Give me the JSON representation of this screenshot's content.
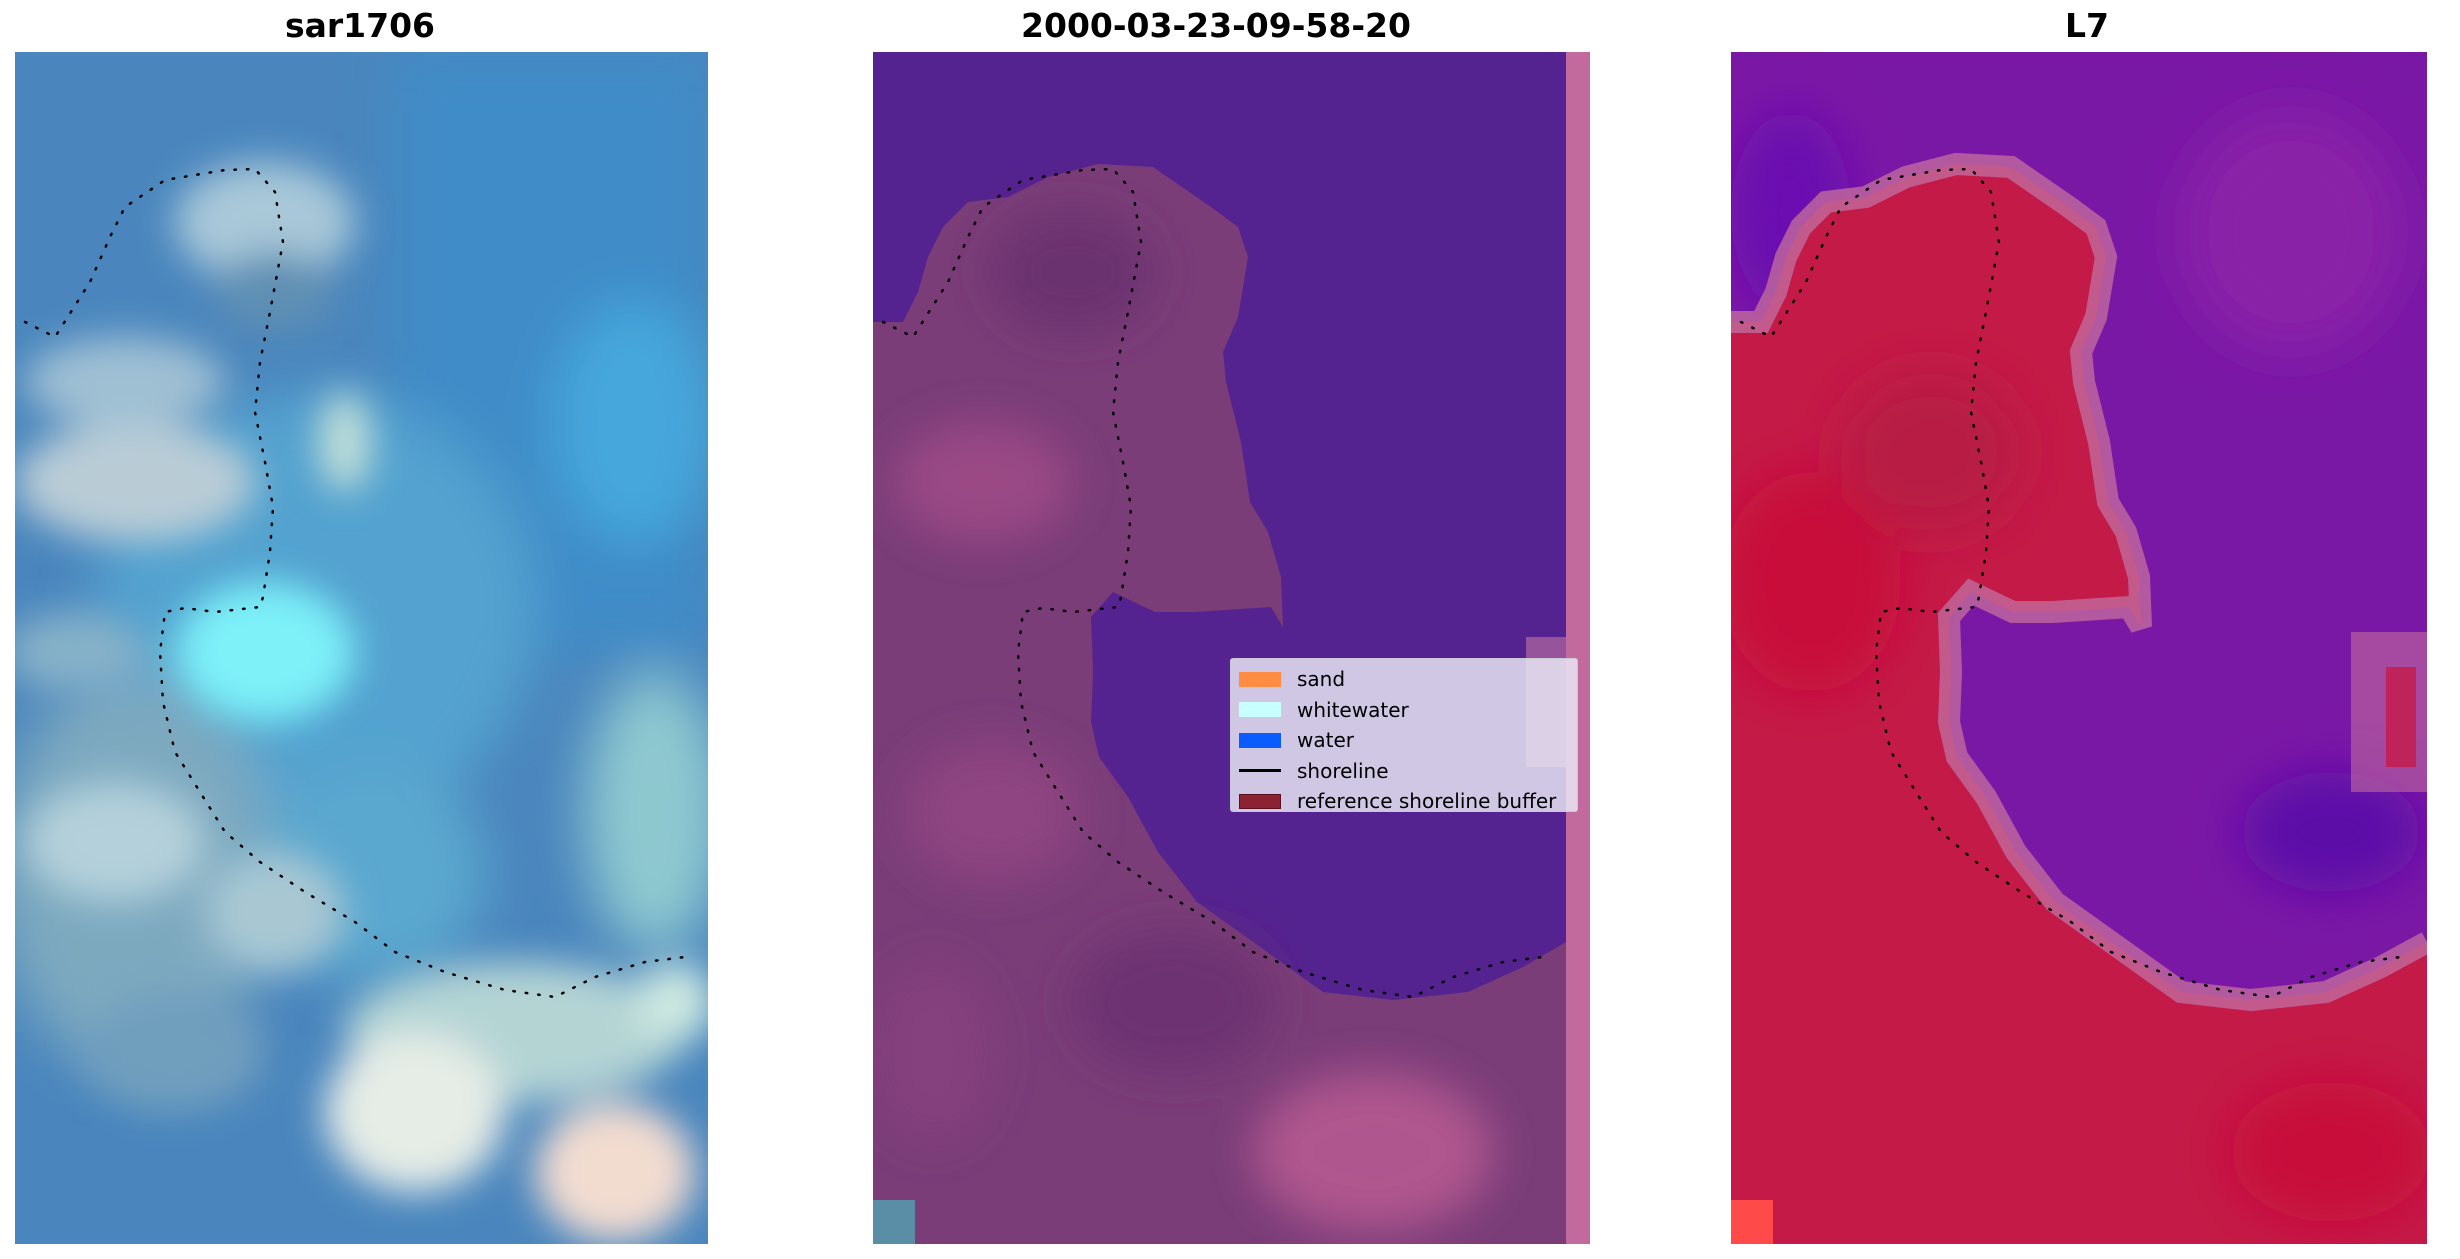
{
  "panels": [
    {
      "title": "sar1706"
    },
    {
      "title": "2000-03-23-09-58-20"
    },
    {
      "title": "L7"
    }
  ],
  "legend": {
    "items": [
      {
        "label": "sand",
        "kind": "patch",
        "color": "#ff8c42"
      },
      {
        "label": "whitewater",
        "kind": "patch",
        "color": "#c8ffff"
      },
      {
        "label": "water",
        "kind": "patch",
        "color": "#0a5cff"
      },
      {
        "label": "shoreline",
        "kind": "line",
        "color": "#000000"
      },
      {
        "label": "reference shoreline buffer",
        "kind": "patch",
        "color": "#8b2332"
      }
    ]
  },
  "colors": {
    "water_class": "#54238f",
    "land_class_overlay": "#7a3d78",
    "buffer_strip": "#c26a9e",
    "ndwi_land": "#c41a47",
    "ndwi_water": "#7a18a6",
    "rgb_water": "#4a8bc0",
    "rgb_foam": "#b8d8e4"
  }
}
